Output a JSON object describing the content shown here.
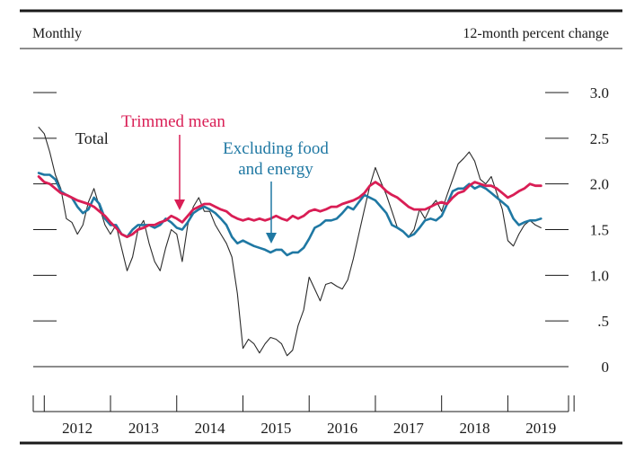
{
  "header": {
    "left_label": "Monthly",
    "right_label": "12-month percent change"
  },
  "annotations": {
    "total": "Total",
    "trimmed": "Trimmed mean",
    "excluding_line1": "Excluding food",
    "excluding_line2": "and energy"
  },
  "colors": {
    "total": "#2b2b2b",
    "excluding": "#1f78a3",
    "trimmed": "#d91e55",
    "axis": "#1a1a1a"
  },
  "chart_data": {
    "type": "line",
    "title": "",
    "xlabel": "",
    "ylabel": "12-month percent change",
    "frequency": "Monthly",
    "x_start": "2011-11",
    "x_end": "2019-12",
    "ylim": [
      0,
      3.0
    ],
    "y_ticks": [
      0,
      0.5,
      1.0,
      1.5,
      2.0,
      2.5,
      3.0
    ],
    "y_tick_labels": [
      "0",
      ".5",
      "1.0",
      "1.5",
      "2.0",
      "2.5",
      "3.0"
    ],
    "x_tick_labels": [
      "2012",
      "2013",
      "2014",
      "2015",
      "2016",
      "2017",
      "2018",
      "2019"
    ],
    "x_start_months": [
      "2011-12",
      "2012-01",
      "2012-02",
      "2012-03",
      "2012-04",
      "2012-05",
      "2012-06",
      "2012-07",
      "2012-08",
      "2012-09",
      "2012-10",
      "2012-11",
      "2012-12",
      "2013-01",
      "2013-02",
      "2013-03",
      "2013-04",
      "2013-05",
      "2013-06",
      "2013-07",
      "2013-08",
      "2013-09",
      "2013-10",
      "2013-11",
      "2013-12",
      "2014-01",
      "2014-02",
      "2014-03",
      "2014-04",
      "2014-05",
      "2014-06",
      "2014-07",
      "2014-08",
      "2014-09",
      "2014-10",
      "2014-11",
      "2014-12",
      "2015-01",
      "2015-02",
      "2015-03",
      "2015-04",
      "2015-05",
      "2015-06",
      "2015-07",
      "2015-08",
      "2015-09",
      "2015-10",
      "2015-11",
      "2015-12",
      "2016-01",
      "2016-02",
      "2016-03",
      "2016-04",
      "2016-05",
      "2016-06",
      "2016-07",
      "2016-08",
      "2016-09",
      "2016-10",
      "2016-11",
      "2016-12",
      "2017-01",
      "2017-02",
      "2017-03",
      "2017-04",
      "2017-05",
      "2017-06",
      "2017-07",
      "2017-08",
      "2017-09",
      "2017-10",
      "2017-11",
      "2017-12",
      "2018-01",
      "2018-02",
      "2018-03",
      "2018-04",
      "2018-05",
      "2018-06",
      "2018-07",
      "2018-08",
      "2018-09",
      "2018-10",
      "2018-11",
      "2018-12",
      "2019-01",
      "2019-02",
      "2019-03",
      "2019-04",
      "2019-05",
      "2019-06",
      "2019-07",
      "2019-08",
      "2019-09"
    ],
    "series": [
      {
        "name": "Total",
        "color": "#2b2b2b",
        "values": [
          2.62,
          2.55,
          2.35,
          2.1,
          1.95,
          1.62,
          1.58,
          1.45,
          1.55,
          1.8,
          1.95,
          1.75,
          1.55,
          1.45,
          1.55,
          1.3,
          1.05,
          1.2,
          1.5,
          1.6,
          1.35,
          1.15,
          1.05,
          1.3,
          1.5,
          1.45,
          1.15,
          1.55,
          1.75,
          1.85,
          1.7,
          1.7,
          1.55,
          1.45,
          1.35,
          1.2,
          0.8,
          0.2,
          0.3,
          0.25,
          0.15,
          0.25,
          0.32,
          0.3,
          0.25,
          0.12,
          0.18,
          0.45,
          0.62,
          0.98,
          0.85,
          0.72,
          0.9,
          0.92,
          0.88,
          0.85,
          0.95,
          1.18,
          1.45,
          1.72,
          1.98,
          2.18,
          2.02,
          1.88,
          1.7,
          1.52,
          1.48,
          1.42,
          1.5,
          1.72,
          1.62,
          1.75,
          1.82,
          1.7,
          1.88,
          2.05,
          2.22,
          2.28,
          2.35,
          2.25,
          2.05,
          2.0,
          2.08,
          1.9,
          1.72,
          1.38,
          1.32,
          1.45,
          1.55,
          1.6,
          1.55,
          1.52
        ]
      },
      {
        "name": "Excluding food and energy",
        "color": "#1f78a3",
        "values": [
          2.12,
          2.1,
          2.1,
          2.05,
          1.92,
          1.88,
          1.85,
          1.75,
          1.68,
          1.72,
          1.85,
          1.78,
          1.62,
          1.55,
          1.55,
          1.45,
          1.42,
          1.5,
          1.55,
          1.55,
          1.55,
          1.52,
          1.55,
          1.62,
          1.58,
          1.52,
          1.5,
          1.58,
          1.68,
          1.72,
          1.75,
          1.72,
          1.68,
          1.62,
          1.55,
          1.42,
          1.35,
          1.38,
          1.35,
          1.32,
          1.3,
          1.28,
          1.25,
          1.28,
          1.28,
          1.22,
          1.25,
          1.25,
          1.3,
          1.4,
          1.52,
          1.55,
          1.6,
          1.6,
          1.62,
          1.68,
          1.75,
          1.72,
          1.8,
          1.88,
          1.85,
          1.82,
          1.75,
          1.68,
          1.55,
          1.52,
          1.48,
          1.42,
          1.45,
          1.52,
          1.6,
          1.62,
          1.6,
          1.65,
          1.78,
          1.92,
          1.95,
          1.95,
          2.0,
          1.95,
          1.98,
          1.95,
          1.9,
          1.85,
          1.8,
          1.75,
          1.62,
          1.55,
          1.58,
          1.6,
          1.6,
          1.62
        ]
      },
      {
        "name": "Trimmed mean",
        "color": "#d91e55",
        "values": [
          2.08,
          2.02,
          2.0,
          1.95,
          1.9,
          1.88,
          1.85,
          1.82,
          1.8,
          1.78,
          1.75,
          1.7,
          1.65,
          1.58,
          1.52,
          1.45,
          1.42,
          1.45,
          1.5,
          1.52,
          1.55,
          1.55,
          1.58,
          1.6,
          1.65,
          1.62,
          1.58,
          1.65,
          1.72,
          1.75,
          1.78,
          1.78,
          1.75,
          1.72,
          1.7,
          1.65,
          1.62,
          1.6,
          1.62,
          1.6,
          1.62,
          1.6,
          1.62,
          1.65,
          1.62,
          1.6,
          1.65,
          1.62,
          1.65,
          1.7,
          1.72,
          1.7,
          1.72,
          1.75,
          1.75,
          1.78,
          1.8,
          1.82,
          1.85,
          1.9,
          1.98,
          2.02,
          1.98,
          1.92,
          1.88,
          1.85,
          1.8,
          1.75,
          1.72,
          1.72,
          1.72,
          1.75,
          1.78,
          1.8,
          1.78,
          1.85,
          1.9,
          1.92,
          1.98,
          2.02,
          2.0,
          1.98,
          1.98,
          1.95,
          1.9,
          1.85,
          1.88,
          1.92,
          1.95,
          2.0,
          1.98,
          1.98
        ]
      }
    ],
    "grid": false,
    "legend": "none; series labeled by annotations with arrows"
  }
}
